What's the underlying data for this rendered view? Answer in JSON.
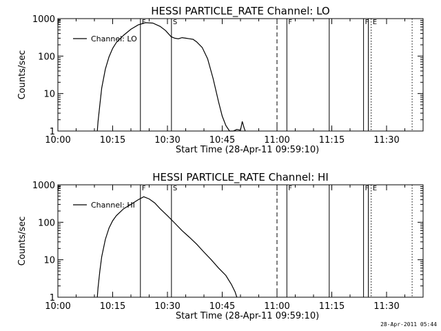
{
  "footer": {
    "timestamp": "28-Apr-2011 05:44"
  },
  "chart_data": [
    {
      "type": "line",
      "title": "HESSI PARTICLE_RATE Channel: LO",
      "xlabel": "Start Time (28-Apr-11 09:59:10)",
      "ylabel": "Counts/sec",
      "yscale": "log",
      "ylim": [
        1,
        1000
      ],
      "xlim_minutes_labels": [
        "10:00",
        "10:15",
        "10:30",
        "10:45",
        "11:00",
        "11:15",
        "11:30"
      ],
      "xticks": [
        0,
        15,
        30,
        45,
        60,
        75,
        90
      ],
      "xlim": [
        0,
        100
      ],
      "yticks": [
        1,
        10,
        100,
        1000
      ],
      "yticklabels": [
        "1",
        "10",
        "100",
        "1000"
      ],
      "legend": {
        "label": "Channel: LO",
        "placement": "top-left"
      },
      "series": [
        {
          "name": "Channel: LO",
          "x": [
            10.8,
            11.0,
            11.5,
            12.0,
            13.0,
            14.0,
            15.0,
            16.0,
            18.0,
            20.0,
            22.0,
            24.0,
            26.0,
            28.0,
            29.5,
            31.0,
            32.0,
            33.0,
            34.0,
            35.0,
            36.0,
            37.0,
            38.0,
            39.5,
            41.0,
            42.5,
            44.0,
            45.0,
            46.0,
            47.0,
            48.0,
            49.0,
            50.0,
            50.5,
            51.0,
            51.3
          ],
          "y": [
            1.0,
            1.8,
            5,
            14,
            45,
            95,
            160,
            230,
            360,
            520,
            680,
            780,
            760,
            620,
            480,
            330,
            300,
            290,
            310,
            300,
            290,
            280,
            240,
            170,
            85,
            25,
            6,
            2.5,
            1.4,
            1.0,
            1.0,
            1.1,
            1.05,
            1.8,
            1.2,
            1.0
          ]
        }
      ],
      "vlines": [
        {
          "x": 22.6,
          "style": "solid",
          "label": "F"
        },
        {
          "x": 31.1,
          "style": "solid",
          "label": "S"
        },
        {
          "x": 60.0,
          "style": "dashed",
          "label": ""
        },
        {
          "x": 62.7,
          "style": "solid",
          "label": "F"
        },
        {
          "x": 74.3,
          "style": "solid",
          "label": ""
        },
        {
          "x": 83.7,
          "style": "solid",
          "label": "F"
        },
        {
          "x": 85.0,
          "style": "solid",
          "label": ""
        },
        {
          "x": 85.8,
          "style": "dotted",
          "label": "E"
        },
        {
          "x": 97.0,
          "style": "dotted",
          "label": ""
        }
      ]
    },
    {
      "type": "line",
      "title": "HESSI PARTICLE_RATE Channel: HI",
      "xlabel": "Start Time (28-Apr-11 09:59:10)",
      "ylabel": "Counts/sec",
      "yscale": "log",
      "ylim": [
        1,
        1000
      ],
      "xticks": [
        0,
        15,
        30,
        45,
        60,
        75,
        90
      ],
      "xlim": [
        0,
        100
      ],
      "yticks": [
        1,
        10,
        100,
        1000
      ],
      "yticklabels": [
        "1",
        "10",
        "100",
        "1000"
      ],
      "xticklabels": [
        "10:00",
        "10:15",
        "10:30",
        "10:45",
        "11:00",
        "11:15",
        "11:30"
      ],
      "legend": {
        "label": "Channel: HI",
        "placement": "top-left"
      },
      "series": [
        {
          "name": "Channel: HI",
          "x": [
            10.8,
            11.0,
            11.5,
            12.0,
            13.0,
            14.0,
            15.0,
            16.0,
            18.0,
            20.0,
            22.0,
            23.5,
            25.0,
            26.5,
            28.0,
            30.0,
            32.0,
            34.0,
            36.0,
            38.0,
            40.0,
            42.0,
            44.0,
            46.0,
            47.5,
            48.5,
            49.0
          ],
          "y": [
            1.0,
            1.8,
            5,
            12,
            35,
            70,
            110,
            150,
            230,
            300,
            400,
            480,
            420,
            330,
            230,
            150,
            95,
            60,
            40,
            26,
            16,
            10,
            6,
            3.8,
            2.2,
            1.4,
            1.0
          ]
        }
      ],
      "vlines": [
        {
          "x": 22.6,
          "style": "solid",
          "label": "F"
        },
        {
          "x": 31.1,
          "style": "solid",
          "label": "S"
        },
        {
          "x": 60.0,
          "style": "dashed",
          "label": ""
        },
        {
          "x": 62.7,
          "style": "solid",
          "label": "F"
        },
        {
          "x": 74.3,
          "style": "solid",
          "label": ""
        },
        {
          "x": 83.7,
          "style": "solid",
          "label": "F"
        },
        {
          "x": 85.0,
          "style": "solid",
          "label": ""
        },
        {
          "x": 85.8,
          "style": "dotted",
          "label": "E"
        },
        {
          "x": 97.0,
          "style": "dotted",
          "label": ""
        }
      ]
    }
  ]
}
